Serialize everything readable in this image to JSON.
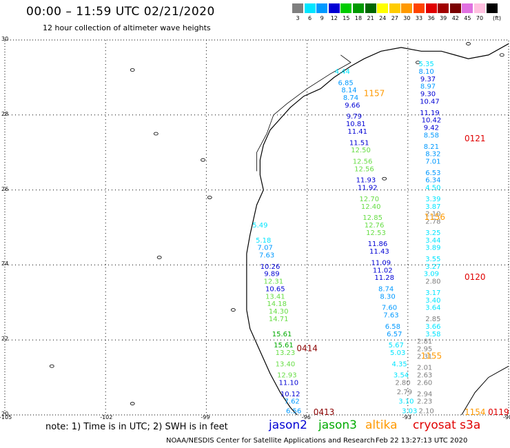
{
  "header": {
    "title": "00:00 – 11:59 UTC 02/21/2020",
    "subtitle": "12 hour collection of altimeter wave heights"
  },
  "scale": {
    "unit": "(ft)",
    "bins": [
      {
        "label": "3",
        "color": "#7f7f7f"
      },
      {
        "label": "6",
        "color": "#00e5ff"
      },
      {
        "label": "9",
        "color": "#0099ff"
      },
      {
        "label": "12",
        "color": "#0000d4"
      },
      {
        "label": "15",
        "color": "#00cc00"
      },
      {
        "label": "18",
        "color": "#009900"
      },
      {
        "label": "21",
        "color": "#006600"
      },
      {
        "label": "24",
        "color": "#ffff00"
      },
      {
        "label": "27",
        "color": "#ffcc00"
      },
      {
        "label": "30",
        "color": "#ff9900"
      },
      {
        "label": "33",
        "color": "#ff4400"
      },
      {
        "label": "36",
        "color": "#e00000"
      },
      {
        "label": "39",
        "color": "#a00000"
      },
      {
        "label": "42",
        "color": "#7a0000"
      },
      {
        "label": "45",
        "color": "#e070e0"
      },
      {
        "label": "70",
        "color": "#ffc0e0"
      },
      {
        "label": "",
        "color": "#000000"
      }
    ]
  },
  "axes": {
    "lat_labels": [
      "30",
      "28",
      "26",
      "24",
      "22",
      "20"
    ],
    "lon_labels": [
      "-105",
      "-102",
      "-99",
      "-96",
      "-93",
      "-90"
    ]
  },
  "colors": {
    "jason2": "#0000d4",
    "jason3": "#00aa00",
    "altika": "#ff9900",
    "cryosat": "#e00000",
    "coast": "#000000",
    "grid": "#000000"
  },
  "tracks": {
    "t1157": {
      "label": "1157",
      "mission": "altika",
      "lon": -94.0,
      "lat": 28.5
    },
    "t1156": {
      "label": "1156",
      "mission": "altika",
      "lon": -92.2,
      "lat": 25.2
    },
    "t1155": {
      "label": "1155",
      "mission": "altika",
      "lon": -92.3,
      "lat": 21.5
    },
    "t1154": {
      "label": "1154",
      "mission": "altika",
      "lon": -91.0,
      "lat": 20.0
    },
    "t0121": {
      "label": "0121",
      "mission": "cryosat",
      "lon": -91.0,
      "lat": 27.3
    },
    "t0120": {
      "label": "0120",
      "mission": "cryosat",
      "lon": -91.0,
      "lat": 23.6
    },
    "t0119": {
      "label": "0119",
      "mission": "cryosat",
      "lon": -90.3,
      "lat": 20.0
    },
    "t0414": {
      "label": "0414",
      "mission": "jason3",
      "lon": -96.0,
      "lat": 21.7
    },
    "t0413": {
      "label": "0413",
      "mission": "jason3",
      "lon": -95.5,
      "lat": 20.0
    }
  },
  "observations": {
    "westTrack": [
      {
        "v": "5.49",
        "lon": -97.4,
        "lat": 25.0,
        "c": "#00e5ff"
      },
      {
        "v": "5.18",
        "lon": -97.3,
        "lat": 24.6,
        "c": "#00e5ff"
      },
      {
        "v": "7.07",
        "lon": -97.25,
        "lat": 24.4,
        "c": "#0099ff"
      },
      {
        "v": "7.63",
        "lon": -97.2,
        "lat": 24.2,
        "c": "#0099ff"
      },
      {
        "v": "10.26",
        "lon": -97.1,
        "lat": 23.9,
        "c": "#0000d4"
      },
      {
        "v": "9.89",
        "lon": -97.05,
        "lat": 23.7,
        "c": "#0000d4"
      },
      {
        "v": "12.31",
        "lon": -97.0,
        "lat": 23.5,
        "c": "#66dd44"
      },
      {
        "v": "10.65",
        "lon": -96.95,
        "lat": 23.3,
        "c": "#0000d4"
      },
      {
        "v": "13.41",
        "lon": -96.95,
        "lat": 23.1,
        "c": "#66dd44"
      },
      {
        "v": "14.18",
        "lon": -96.9,
        "lat": 22.9,
        "c": "#66dd44"
      },
      {
        "v": "14.30",
        "lon": -96.85,
        "lat": 22.7,
        "c": "#66dd44"
      },
      {
        "v": "14.71",
        "lon": -96.85,
        "lat": 22.5,
        "c": "#66dd44"
      },
      {
        "v": "15.61",
        "lon": -96.75,
        "lat": 22.1,
        "c": "#00aa00"
      },
      {
        "v": "15.61",
        "lon": -96.7,
        "lat": 21.8,
        "c": "#00aa00"
      },
      {
        "v": "13.23",
        "lon": -96.65,
        "lat": 21.6,
        "c": "#66dd44"
      },
      {
        "v": "13.40",
        "lon": -96.65,
        "lat": 21.3,
        "c": "#66dd44"
      },
      {
        "v": "12.93",
        "lon": -96.6,
        "lat": 21.0,
        "c": "#66dd44"
      },
      {
        "v": "11.10",
        "lon": -96.55,
        "lat": 20.8,
        "c": "#0000d4"
      },
      {
        "v": "10.12",
        "lon": -96.5,
        "lat": 20.5,
        "c": "#0000d4"
      },
      {
        "v": "7.62",
        "lon": -96.45,
        "lat": 20.3,
        "c": "#0099ff"
      },
      {
        "v": "6.56",
        "lon": -96.4,
        "lat": 20.05,
        "c": "#0099ff"
      }
    ],
    "midTrack": [
      {
        "v": "4.44",
        "lon": -94.95,
        "lat": 29.1,
        "c": "#00e5ff"
      },
      {
        "v": "6.85",
        "lon": -94.85,
        "lat": 28.8,
        "c": "#0099ff"
      },
      {
        "v": "8.14",
        "lon": -94.75,
        "lat": 28.6,
        "c": "#0099ff"
      },
      {
        "v": "8.74",
        "lon": -94.7,
        "lat": 28.4,
        "c": "#0099ff"
      },
      {
        "v": "9.66",
        "lon": -94.65,
        "lat": 28.2,
        "c": "#0000d4"
      },
      {
        "v": "9.79",
        "lon": -94.6,
        "lat": 27.9,
        "c": "#0000d4"
      },
      {
        "v": "10.81",
        "lon": -94.55,
        "lat": 27.7,
        "c": "#0000d4"
      },
      {
        "v": "11.41",
        "lon": -94.5,
        "lat": 27.5,
        "c": "#0000d4"
      },
      {
        "v": "11.51",
        "lon": -94.45,
        "lat": 27.2,
        "c": "#0000d4"
      },
      {
        "v": "12.50",
        "lon": -94.4,
        "lat": 27.0,
        "c": "#66dd44"
      },
      {
        "v": "12.56",
        "lon": -94.35,
        "lat": 26.7,
        "c": "#66dd44"
      },
      {
        "v": "12.56",
        "lon": -94.3,
        "lat": 26.5,
        "c": "#66dd44"
      },
      {
        "v": "11.93",
        "lon": -94.25,
        "lat": 26.2,
        "c": "#0000d4"
      },
      {
        "v": "11.92",
        "lon": -94.2,
        "lat": 26.0,
        "c": "#0000d4"
      },
      {
        "v": "12.70",
        "lon": -94.15,
        "lat": 25.7,
        "c": "#66dd44"
      },
      {
        "v": "12.40",
        "lon": -94.1,
        "lat": 25.5,
        "c": "#66dd44"
      },
      {
        "v": "12.85",
        "lon": -94.05,
        "lat": 25.2,
        "c": "#66dd44"
      },
      {
        "v": "12.76",
        "lon": -94.0,
        "lat": 25.0,
        "c": "#66dd44"
      },
      {
        "v": "12.53",
        "lon": -93.95,
        "lat": 24.8,
        "c": "#66dd44"
      },
      {
        "v": "11.86",
        "lon": -93.9,
        "lat": 24.5,
        "c": "#0000d4"
      },
      {
        "v": "11.43",
        "lon": -93.85,
        "lat": 24.3,
        "c": "#0000d4"
      },
      {
        "v": "11.09",
        "lon": -93.8,
        "lat": 24.0,
        "c": "#0000d4"
      },
      {
        "v": "11.02",
        "lon": -93.75,
        "lat": 23.8,
        "c": "#0000d4"
      },
      {
        "v": "11.28",
        "lon": -93.7,
        "lat": 23.6,
        "c": "#0000d4"
      },
      {
        "v": "8.74",
        "lon": -93.65,
        "lat": 23.3,
        "c": "#0099ff"
      },
      {
        "v": "8.30",
        "lon": -93.6,
        "lat": 23.1,
        "c": "#0099ff"
      },
      {
        "v": "7.60",
        "lon": -93.55,
        "lat": 22.8,
        "c": "#0099ff"
      },
      {
        "v": "7.63",
        "lon": -93.5,
        "lat": 22.6,
        "c": "#0099ff"
      },
      {
        "v": "6.58",
        "lon": -93.45,
        "lat": 22.3,
        "c": "#0099ff"
      },
      {
        "v": "6.57",
        "lon": -93.4,
        "lat": 22.1,
        "c": "#0099ff"
      },
      {
        "v": "5.67",
        "lon": -93.35,
        "lat": 21.8,
        "c": "#00e5ff"
      },
      {
        "v": "5.03",
        "lon": -93.3,
        "lat": 21.6,
        "c": "#00e5ff"
      },
      {
        "v": "4.35",
        "lon": -93.25,
        "lat": 21.3,
        "c": "#00e5ff"
      },
      {
        "v": "3.54",
        "lon": -93.2,
        "lat": 21.0,
        "c": "#00e5ff"
      },
      {
        "v": "2.80",
        "lon": -93.15,
        "lat": 20.8,
        "c": "#7f7f7f"
      },
      {
        "v": "2.79",
        "lon": -93.1,
        "lat": 20.55,
        "c": "#7f7f7f"
      },
      {
        "v": "3.10",
        "lon": -93.05,
        "lat": 20.3,
        "c": "#00e5ff"
      },
      {
        "v": "3.03",
        "lon": -92.95,
        "lat": 20.05,
        "c": "#00e5ff"
      }
    ],
    "eastTrack": [
      {
        "v": "5.35",
        "lon": -92.45,
        "lat": 29.3,
        "c": "#00e5ff"
      },
      {
        "v": "8.10",
        "lon": -92.45,
        "lat": 29.1,
        "c": "#0099ff"
      },
      {
        "v": "9.37",
        "lon": -92.4,
        "lat": 28.9,
        "c": "#0000d4"
      },
      {
        "v": "8.97",
        "lon": -92.4,
        "lat": 28.7,
        "c": "#0099ff"
      },
      {
        "v": "9.30",
        "lon": -92.4,
        "lat": 28.5,
        "c": "#0000d4"
      },
      {
        "v": "10.47",
        "lon": -92.35,
        "lat": 28.3,
        "c": "#0000d4"
      },
      {
        "v": "11.19",
        "lon": -92.35,
        "lat": 28.0,
        "c": "#0000d4"
      },
      {
        "v": "10.42",
        "lon": -92.3,
        "lat": 27.8,
        "c": "#0000d4"
      },
      {
        "v": "9.42",
        "lon": -92.3,
        "lat": 27.6,
        "c": "#0000d4"
      },
      {
        "v": "8.58",
        "lon": -92.3,
        "lat": 27.4,
        "c": "#0099ff"
      },
      {
        "v": "8.21",
        "lon": -92.3,
        "lat": 27.1,
        "c": "#0099ff"
      },
      {
        "v": "8.32",
        "lon": -92.25,
        "lat": 26.9,
        "c": "#0099ff"
      },
      {
        "v": "7.01",
        "lon": -92.25,
        "lat": 26.7,
        "c": "#0099ff"
      },
      {
        "v": "6.53",
        "lon": -92.25,
        "lat": 26.4,
        "c": "#0099ff"
      },
      {
        "v": "6.34",
        "lon": -92.25,
        "lat": 26.2,
        "c": "#0099ff"
      },
      {
        "v": "4.50",
        "lon": -92.25,
        "lat": 26.0,
        "c": "#00e5ff"
      },
      {
        "v": "3.39",
        "lon": -92.25,
        "lat": 25.7,
        "c": "#00e5ff"
      },
      {
        "v": "3.87",
        "lon": -92.25,
        "lat": 25.5,
        "c": "#00e5ff"
      },
      {
        "v": "2.10",
        "lon": -92.25,
        "lat": 25.3,
        "c": "#7f7f7f"
      },
      {
        "v": "2.78",
        "lon": -92.25,
        "lat": 25.1,
        "c": "#7f7f7f"
      },
      {
        "v": "3.25",
        "lon": -92.25,
        "lat": 24.8,
        "c": "#00e5ff"
      },
      {
        "v": "3.44",
        "lon": -92.25,
        "lat": 24.6,
        "c": "#00e5ff"
      },
      {
        "v": "3.89",
        "lon": -92.25,
        "lat": 24.4,
        "c": "#00e5ff"
      },
      {
        "v": "3.55",
        "lon": -92.25,
        "lat": 24.1,
        "c": "#00e5ff"
      },
      {
        "v": "3.27",
        "lon": -92.25,
        "lat": 23.9,
        "c": "#00e5ff"
      },
      {
        "v": "3.09",
        "lon": -92.3,
        "lat": 23.7,
        "c": "#00e5ff"
      },
      {
        "v": "2.80",
        "lon": -92.25,
        "lat": 23.5,
        "c": "#7f7f7f"
      },
      {
        "v": "3.17",
        "lon": -92.25,
        "lat": 23.2,
        "c": "#00e5ff"
      },
      {
        "v": "3.40",
        "lon": -92.25,
        "lat": 23.0,
        "c": "#00e5ff"
      },
      {
        "v": "3.64",
        "lon": -92.25,
        "lat": 22.8,
        "c": "#00e5ff"
      },
      {
        "v": "2.85",
        "lon": -92.25,
        "lat": 22.5,
        "c": "#7f7f7f"
      },
      {
        "v": "3.66",
        "lon": -92.25,
        "lat": 22.3,
        "c": "#00e5ff"
      },
      {
        "v": "3.58",
        "lon": -92.25,
        "lat": 22.1,
        "c": "#00e5ff"
      },
      {
        "v": "2.81",
        "lon": -92.5,
        "lat": 21.9,
        "c": "#7f7f7f"
      },
      {
        "v": "2.95",
        "lon": -92.5,
        "lat": 21.7,
        "c": "#7f7f7f"
      },
      {
        "v": "2.31",
        "lon": -92.5,
        "lat": 21.5,
        "c": "#7f7f7f"
      },
      {
        "v": "2.01",
        "lon": -92.5,
        "lat": 21.2,
        "c": "#7f7f7f"
      },
      {
        "v": "2.63",
        "lon": -92.5,
        "lat": 21.0,
        "c": "#7f7f7f"
      },
      {
        "v": "2.60",
        "lon": -92.5,
        "lat": 20.8,
        "c": "#7f7f7f"
      },
      {
        "v": "2.94",
        "lon": -92.5,
        "lat": 20.5,
        "c": "#7f7f7f"
      },
      {
        "v": "2.23",
        "lon": -92.5,
        "lat": 20.3,
        "c": "#7f7f7f"
      },
      {
        "v": "2.10",
        "lon": -92.45,
        "lat": 20.05,
        "c": "#7f7f7f"
      }
    ]
  },
  "note": "note:  1) Time is in UTC;  2) SWH is in feet",
  "missions": {
    "jason2": "jason2",
    "jason3": "jason3",
    "altika": "altika",
    "cryosat": "cryosat s3a"
  },
  "footer": {
    "agency": "NOAA/NESDIS Center for Satellite Applications and Research",
    "timestamp": "Feb 22 13:27:13 UTC 2020"
  }
}
